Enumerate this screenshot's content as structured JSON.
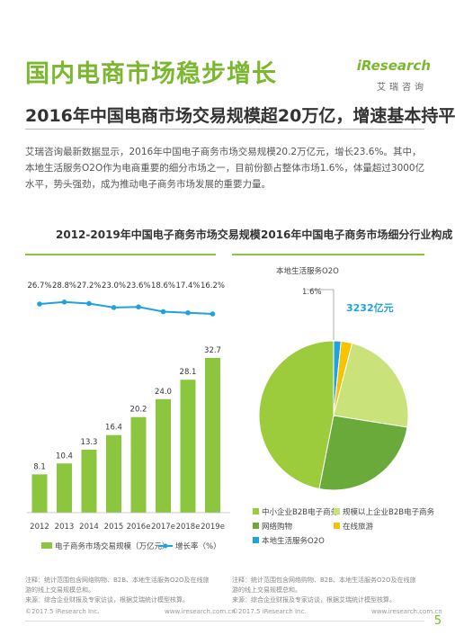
{
  "page": {
    "title": "国内电商市场稳步增长",
    "subtitle": "2016年中国电商市场交易规模超20万亿，增速基本持平",
    "intro": "艾瑞咨询最新数据显示，2016年中国电子商务市场交易规模20.2万亿元，增长23.6%。其中，本地生活服务O2O作为电商重要的细分市场之一，目前份额占整体市场1.6%，体量超过3000亿水平，势头强劲，成为推动电子商务市场发展的重要力量。",
    "logo_text": "iResearch",
    "logo_sub": "艾瑞咨询",
    "page_number": "5"
  },
  "left_panel": {
    "title": "2012-2019年中国电子商务市场交易规模",
    "legend_bar": "电子商务市场交易规模（万亿元）",
    "legend_line": "增长率（%）",
    "note": "注释：统计范围包含网络购物、B2B、本地生活服务O2O及在线旅游的线上交易规模总和。",
    "source": "来源：综合企业财报及专家访谈，根据艾瑞统计模型核算。",
    "copyright": "©2017.5 iResearch Inc.",
    "site": "www.iresearch.com.cn"
  },
  "right_panel": {
    "title": "2016年中国电子商务市场细分行业构成",
    "callout_label": "本地生活服务O2O",
    "callout_pct": "1.6%",
    "callout_value": "3232亿元",
    "note": "注释：统计范围包含网络购物、B2B、本地生活服务O2O及在线旅游的线上交易规模总和。",
    "source": "来源：综合企业财报及专家访谈，根据艾瑞统计模型核算。",
    "copyright": "©2017.5 iResearch Inc.",
    "site": "www.iresearch.com.cn"
  },
  "colors": {
    "accent": "#7cb82f",
    "bar": "#8cc63f",
    "line": "#1fa3e0",
    "pie": [
      "#9ccc3c",
      "#6aaa3a",
      "#c9e27a",
      "#f5c400",
      "#1fa3e0"
    ]
  },
  "chart_data": [
    {
      "type": "bar",
      "title": "2012-2019年中国电子商务市场交易规模",
      "categories": [
        "2012",
        "2013",
        "2014",
        "2015",
        "2016e",
        "2017e",
        "2018e",
        "2019e"
      ],
      "series": [
        {
          "name": "电子商务市场交易规模（万亿元）",
          "type": "bar",
          "values": [
            8.1,
            10.4,
            13.3,
            16.4,
            20.2,
            24.0,
            28.1,
            32.7
          ],
          "labels": [
            "8.1",
            "10.4",
            "13.3",
            "16.4",
            "20.2",
            "24.0",
            "28.1",
            "32.7"
          ]
        },
        {
          "name": "增长率（%）",
          "type": "line",
          "values": [
            26.7,
            28.8,
            27.2,
            23.0,
            23.6,
            18.6,
            17.4,
            16.2
          ],
          "labels": [
            "26.7%",
            "28.8%",
            "27.2%",
            "23.0%",
            "23.6%",
            "18.6%",
            "17.4%",
            "16.2%"
          ]
        }
      ],
      "ylim": [
        0,
        35
      ],
      "legend": "bottom",
      "grid": false
    },
    {
      "type": "pie",
      "title": "2016年中国电子商务市场细分行业构成",
      "labels": [
        "中小企业B2B电子商务",
        "网络购物",
        "规模以上企业B2B电子商务",
        "在线旅游",
        "本地生活服务O2O"
      ],
      "values": [
        46.9,
        25.6,
        23.5,
        2.4,
        1.6
      ],
      "legend": "bottom"
    }
  ]
}
